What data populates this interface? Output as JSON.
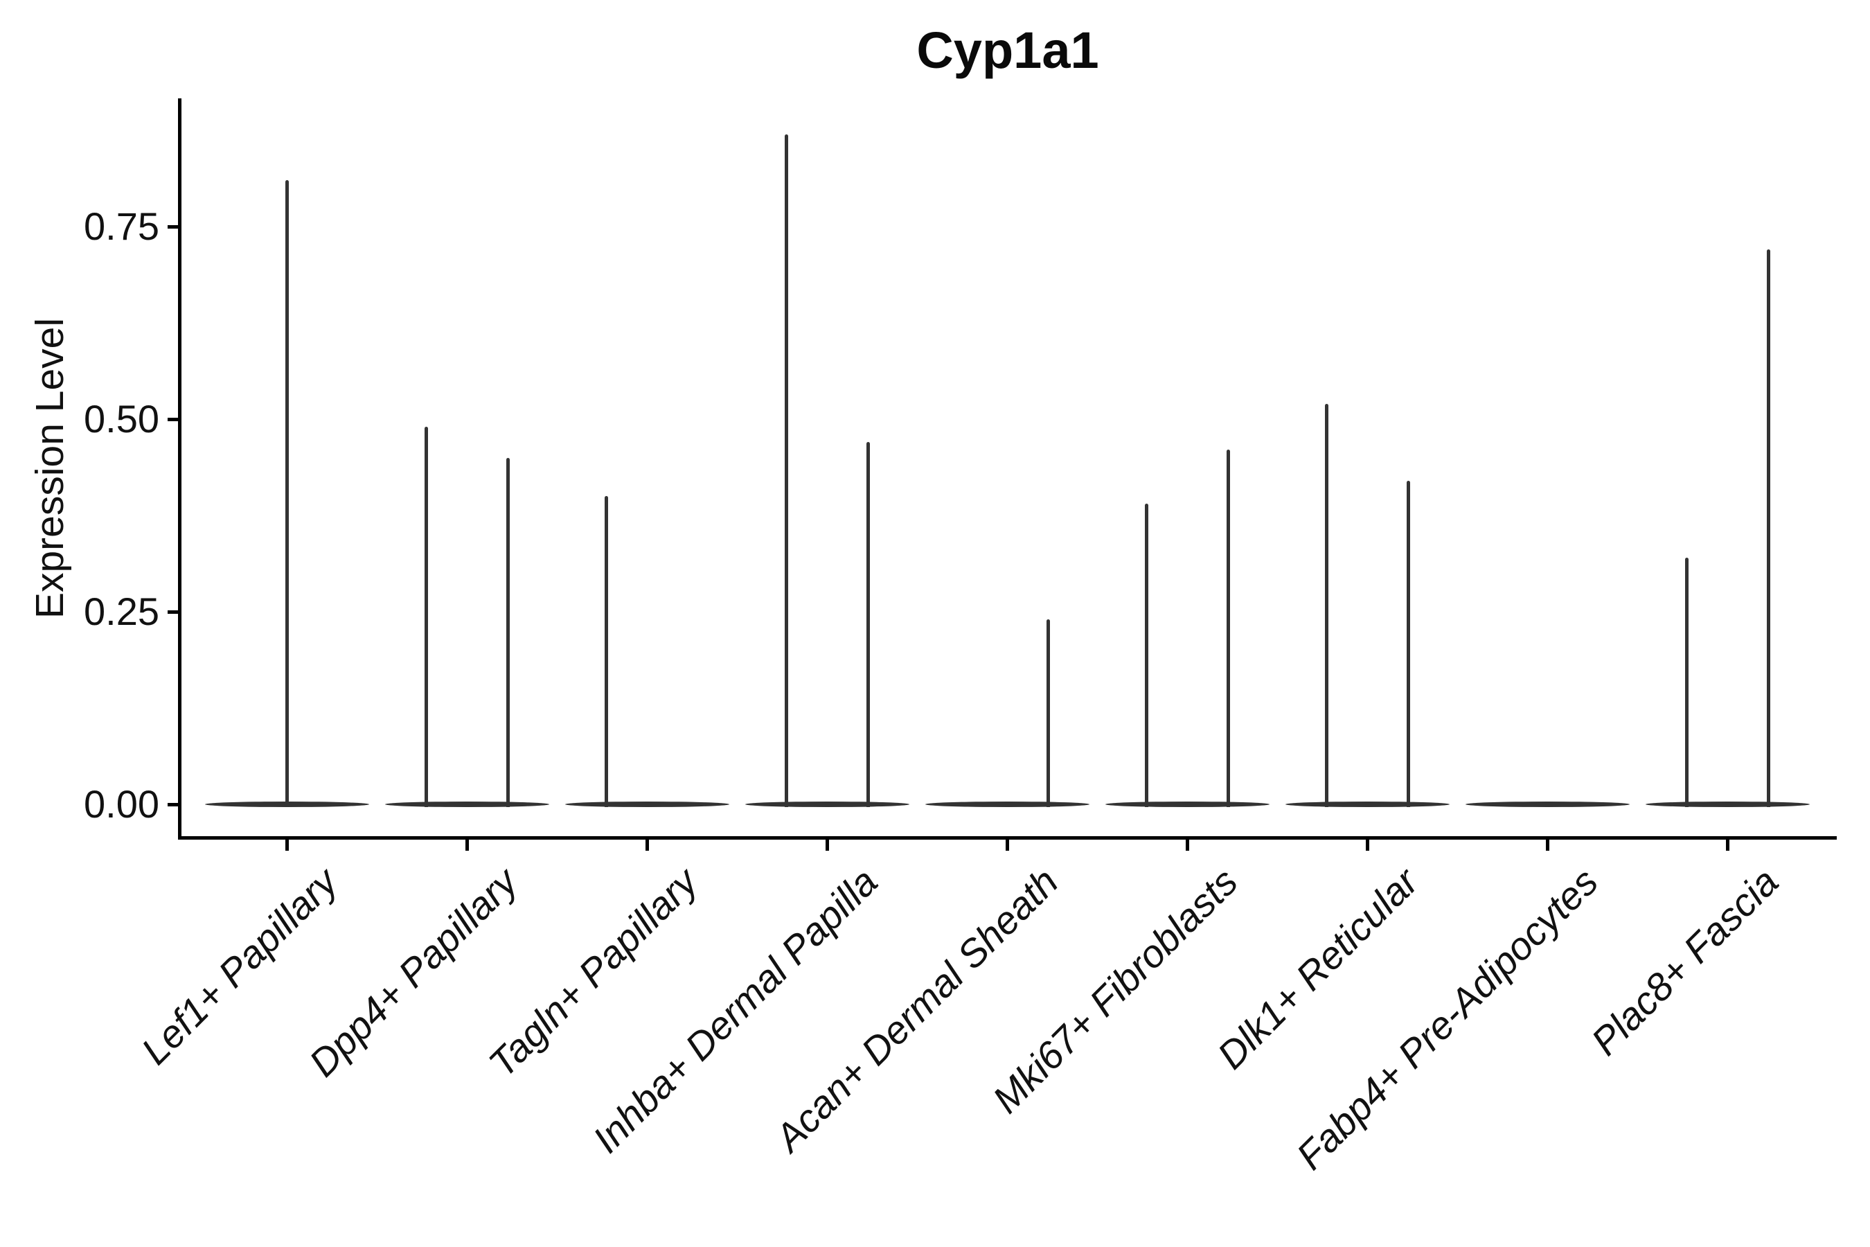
{
  "figure": {
    "title": "Cyp1a1",
    "ylabel": "Expression Level"
  },
  "colors": {
    "violin": "#333333",
    "axis": "#000000",
    "text": "#111111",
    "background": "#ffffff"
  },
  "chart_data": {
    "type": "violin",
    "title": "Cyp1a1",
    "xlabel": "",
    "ylabel": "Expression Level",
    "ylim": [
      -0.04,
      0.92
    ],
    "grid": false,
    "legend": null,
    "yticks": [
      {
        "value": 0.0,
        "label": "0.00"
      },
      {
        "value": 0.25,
        "label": "0.25"
      },
      {
        "value": 0.5,
        "label": "0.50"
      },
      {
        "value": 0.75,
        "label": "0.75"
      }
    ],
    "categories": [
      "Lef1+ Papillary",
      "Dpp4+ Papillary",
      "Tagln+ Papillary",
      "Inhba+ Dermal Papilla",
      "Acan+ Dermal Sheath",
      "Mki67+ Fibroblasts",
      "Dlk1+ Reticular",
      "Fabp4+ Pre-Adipocytes",
      "Plac8+ Fascia"
    ],
    "violins": [
      {
        "category": "Lef1+ Papillary",
        "baseline_value": 0,
        "spikes": [
          {
            "side": "center",
            "value": 0.81
          }
        ]
      },
      {
        "category": "Dpp4+ Papillary",
        "baseline_value": 0,
        "spikes": [
          {
            "side": "left",
            "value": 0.49
          },
          {
            "side": "right",
            "value": 0.45
          }
        ]
      },
      {
        "category": "Tagln+ Papillary",
        "baseline_value": 0,
        "spikes": [
          {
            "side": "left",
            "value": 0.4
          }
        ]
      },
      {
        "category": "Inhba+ Dermal Papilla",
        "baseline_value": 0,
        "spikes": [
          {
            "side": "left",
            "value": 0.87
          },
          {
            "side": "right",
            "value": 0.47
          }
        ]
      },
      {
        "category": "Acan+ Dermal Sheath",
        "baseline_value": 0,
        "spikes": [
          {
            "side": "right",
            "value": 0.24
          }
        ]
      },
      {
        "category": "Mki67+ Fibroblasts",
        "baseline_value": 0,
        "spikes": [
          {
            "side": "left",
            "value": 0.39
          },
          {
            "side": "right",
            "value": 0.46
          }
        ]
      },
      {
        "category": "Dlk1+ Reticular",
        "baseline_value": 0,
        "spikes": [
          {
            "side": "left",
            "value": 0.52
          },
          {
            "side": "right",
            "value": 0.42
          }
        ]
      },
      {
        "category": "Fabp4+ Pre-Adipocytes",
        "baseline_value": 0,
        "spikes": []
      },
      {
        "category": "Plac8+ Fascia",
        "baseline_value": 0,
        "spikes": [
          {
            "side": "left",
            "value": 0.32
          },
          {
            "side": "right",
            "value": 0.72
          }
        ]
      }
    ]
  }
}
